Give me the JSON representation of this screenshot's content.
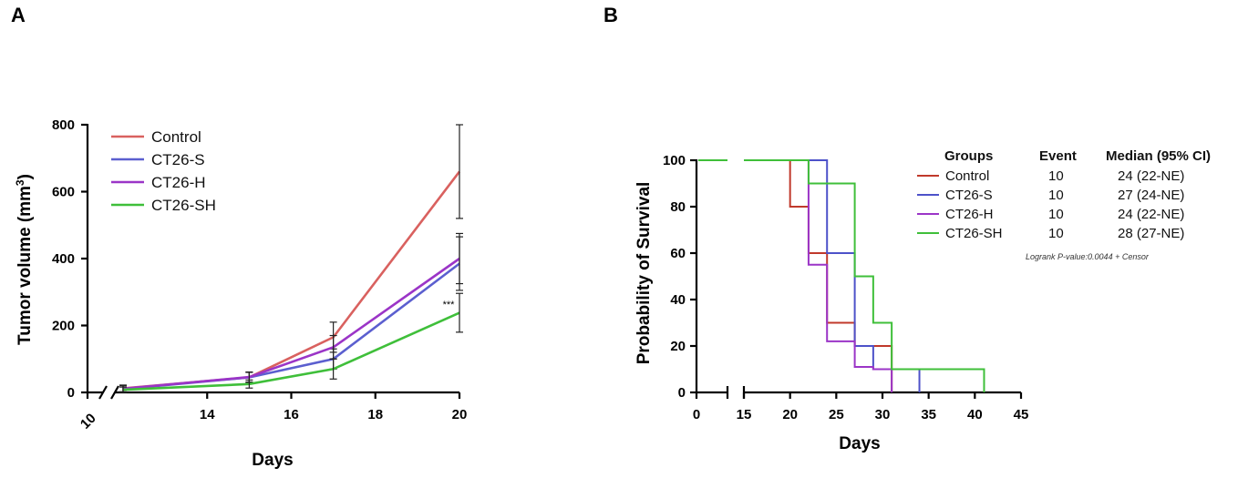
{
  "chart_data": [
    {
      "panel": "A",
      "type": "line",
      "ylabel_prefix": "Tumor volume (mm",
      "ylabel_sup": "3",
      "ylabel_suffix": ")",
      "xlabel": "Days",
      "x_break_label": "10",
      "xticks": [
        14,
        16,
        18,
        20
      ],
      "yticks": [
        0,
        200,
        400,
        600,
        800
      ],
      "xlim": [
        12,
        20
      ],
      "ylim": [
        0,
        800
      ],
      "x": [
        12,
        15,
        17,
        20
      ],
      "series": [
        {
          "name": "Control",
          "color": "#d9615f",
          "values": [
            12,
            45,
            165,
            660
          ],
          "err": [
            10,
            15,
            45,
            140
          ]
        },
        {
          "name": "CT26-S",
          "color": "#5b5fcf",
          "values": [
            10,
            45,
            100,
            385
          ],
          "err": [
            10,
            15,
            30,
            80
          ]
        },
        {
          "name": "CT26-H",
          "color": "#9b35c7",
          "values": [
            11,
            46,
            135,
            400
          ],
          "err": [
            10,
            15,
            35,
            75
          ]
        },
        {
          "name": "CT26-SH",
          "color": "#3fbf3a",
          "values": [
            8,
            25,
            70,
            238
          ],
          "err": [
            8,
            12,
            30,
            58
          ]
        }
      ],
      "annotation": "***"
    },
    {
      "panel": "B",
      "type": "line",
      "subtype": "kaplan-meier",
      "ylabel": "Probability of Survival",
      "xlabel": "Days",
      "xticks": [
        0,
        15,
        20,
        25,
        30,
        35,
        40,
        45
      ],
      "yticks": [
        0,
        20,
        40,
        60,
        80,
        100
      ],
      "xlim": [
        0,
        45
      ],
      "ylim": [
        0,
        100
      ],
      "legend_headers": [
        "Groups",
        "Event",
        "Median (95% CI)"
      ],
      "series": [
        {
          "name": "Control",
          "color": "#c0392b",
          "event": "10",
          "median": "24 (22-NE)",
          "steps": [
            [
              0,
              100
            ],
            [
              20,
              100
            ],
            [
              20,
              80
            ],
            [
              22,
              80
            ],
            [
              22,
              60
            ],
            [
              24,
              60
            ],
            [
              24,
              30
            ],
            [
              27,
              30
            ],
            [
              27,
              20
            ],
            [
              31,
              20
            ],
            [
              31,
              0
            ]
          ]
        },
        {
          "name": "CT26-S",
          "color": "#4d52c9",
          "event": "10",
          "median": "27 (24-NE)",
          "steps": [
            [
              0,
              100
            ],
            [
              24,
              100
            ],
            [
              24,
              60
            ],
            [
              27,
              60
            ],
            [
              27,
              20
            ],
            [
              29,
              20
            ],
            [
              29,
              10
            ],
            [
              34,
              10
            ],
            [
              34,
              0
            ]
          ]
        },
        {
          "name": "CT26-H",
          "color": "#9b35c7",
          "event": "10",
          "median": "24 (22-NE)",
          "steps": [
            [
              0,
              100
            ],
            [
              22,
              100
            ],
            [
              22,
              55
            ],
            [
              24,
              55
            ],
            [
              24,
              22
            ],
            [
              27,
              22
            ],
            [
              27,
              11
            ],
            [
              29,
              11
            ],
            [
              29,
              10
            ],
            [
              31,
              10
            ],
            [
              31,
              0
            ]
          ]
        },
        {
          "name": "CT26-SH",
          "color": "#3fbf3a",
          "event": "10",
          "median": "28 (27-NE)",
          "steps": [
            [
              0,
              100
            ],
            [
              22,
              100
            ],
            [
              22,
              90
            ],
            [
              27,
              90
            ],
            [
              27,
              50
            ],
            [
              29,
              50
            ],
            [
              29,
              30
            ],
            [
              31,
              30
            ],
            [
              31,
              10
            ],
            [
              41,
              10
            ],
            [
              41,
              0
            ]
          ]
        }
      ],
      "note": "Logrank P-value:0.0044 + Censor"
    }
  ]
}
